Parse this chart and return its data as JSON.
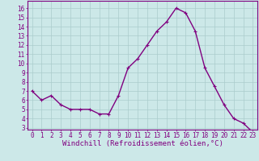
{
  "x": [
    0,
    1,
    2,
    3,
    4,
    5,
    6,
    7,
    8,
    9,
    10,
    11,
    12,
    13,
    14,
    15,
    16,
    17,
    18,
    19,
    20,
    21,
    22,
    23
  ],
  "y": [
    7.0,
    6.0,
    6.5,
    5.5,
    5.0,
    5.0,
    5.0,
    4.5,
    4.5,
    6.5,
    9.5,
    10.5,
    12.0,
    13.5,
    14.5,
    16.0,
    15.5,
    13.5,
    9.5,
    7.5,
    5.5,
    4.0,
    3.5,
    2.5
  ],
  "line_color": "#800080",
  "marker": "+",
  "marker_size": 3,
  "marker_color": "#800080",
  "xlabel": "Windchill (Refroidissement éolien,°C)",
  "xlabel_fontsize": 6.5,
  "xlim": [
    -0.5,
    23.5
  ],
  "ylim": [
    2.8,
    16.8
  ],
  "yticks": [
    3,
    4,
    5,
    6,
    7,
    8,
    9,
    10,
    11,
    12,
    13,
    14,
    15,
    16
  ],
  "xticks": [
    0,
    1,
    2,
    3,
    4,
    5,
    6,
    7,
    8,
    9,
    10,
    11,
    12,
    13,
    14,
    15,
    16,
    17,
    18,
    19,
    20,
    21,
    22,
    23
  ],
  "grid_color": "#aacccc",
  "bg_color": "#cce8e8",
  "tick_color": "#800080",
  "tick_fontsize": 5.5,
  "linewidth": 1.0,
  "spine_color": "#800080"
}
